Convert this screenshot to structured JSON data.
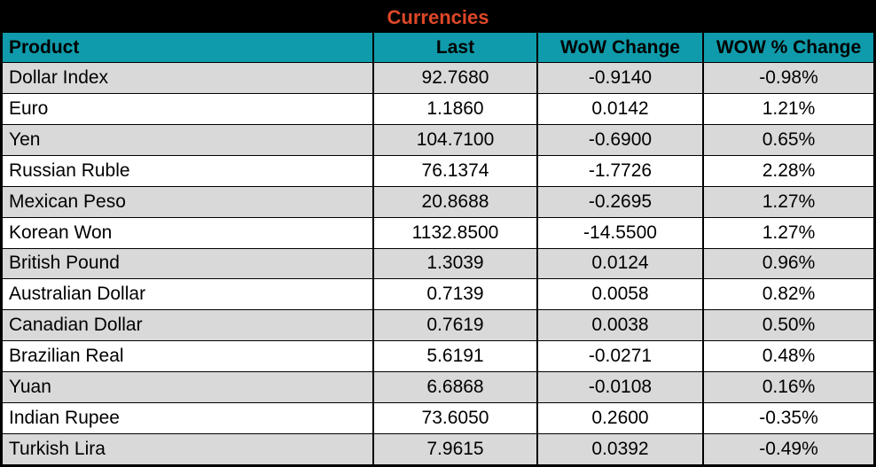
{
  "title": "Currencies",
  "colors": {
    "title_bg": "#000000",
    "title_text": "#DE4727",
    "header_bg": "#0F9BAB",
    "header_text": "#000000",
    "row_alt_bg": "#D9D9D9",
    "row_plain_bg": "#FFFFFF",
    "grid_border": "#000000"
  },
  "table": {
    "columns": [
      "Product",
      "Last",
      "WoW Change",
      "WOW % Change"
    ],
    "rows": [
      {
        "product": "Dollar Index",
        "last": "92.7680",
        "wow_change": "-0.9140",
        "wow_pct_change": "-0.98%"
      },
      {
        "product": "Euro",
        "last": "1.1860",
        "wow_change": "0.0142",
        "wow_pct_change": "1.21%"
      },
      {
        "product": "Yen",
        "last": "104.7100",
        "wow_change": "-0.6900",
        "wow_pct_change": "0.65%"
      },
      {
        "product": "Russian Ruble",
        "last": "76.1374",
        "wow_change": "-1.7726",
        "wow_pct_change": "2.28%"
      },
      {
        "product": "Mexican Peso",
        "last": "20.8688",
        "wow_change": "-0.2695",
        "wow_pct_change": "1.27%"
      },
      {
        "product": "Korean Won",
        "last": "1132.8500",
        "wow_change": "-14.5500",
        "wow_pct_change": "1.27%"
      },
      {
        "product": "British Pound",
        "last": "1.3039",
        "wow_change": "0.0124",
        "wow_pct_change": "0.96%"
      },
      {
        "product": "Australian Dollar",
        "last": "0.7139",
        "wow_change": "0.0058",
        "wow_pct_change": "0.82%"
      },
      {
        "product": "Canadian Dollar",
        "last": "0.7619",
        "wow_change": "0.0038",
        "wow_pct_change": "0.50%"
      },
      {
        "product": "Brazilian Real",
        "last": "5.6191",
        "wow_change": "-0.0271",
        "wow_pct_change": "0.48%"
      },
      {
        "product": "Yuan",
        "last": "6.6868",
        "wow_change": "-0.0108",
        "wow_pct_change": "0.16%"
      },
      {
        "product": "Indian Rupee",
        "last": "73.6050",
        "wow_change": "0.2600",
        "wow_pct_change": "-0.35%"
      },
      {
        "product": "Turkish Lira",
        "last": "7.9615",
        "wow_change": "0.0392",
        "wow_pct_change": "-0.49%"
      }
    ]
  },
  "chart_data": {
    "type": "table",
    "title": "Currencies",
    "columns": [
      "Product",
      "Last",
      "WoW Change",
      "WOW % Change"
    ],
    "rows": [
      [
        "Dollar Index",
        92.768,
        -0.914,
        "-0.98%"
      ],
      [
        "Euro",
        1.186,
        0.0142,
        "1.21%"
      ],
      [
        "Yen",
        104.71,
        -0.69,
        "0.65%"
      ],
      [
        "Russian Ruble",
        76.1374,
        -1.7726,
        "2.28%"
      ],
      [
        "Mexican Peso",
        20.8688,
        -0.2695,
        "1.27%"
      ],
      [
        "Korean Won",
        1132.85,
        -14.55,
        "1.27%"
      ],
      [
        "British Pound",
        1.3039,
        0.0124,
        "0.96%"
      ],
      [
        "Australian Dollar",
        0.7139,
        0.0058,
        "0.82%"
      ],
      [
        "Canadian Dollar",
        0.7619,
        0.0038,
        "0.50%"
      ],
      [
        "Brazilian Real",
        5.6191,
        -0.0271,
        "0.48%"
      ],
      [
        "Yuan",
        6.6868,
        -0.0108,
        "0.16%"
      ],
      [
        "Indian Rupee",
        73.605,
        0.26,
        "-0.35%"
      ],
      [
        "Turkish Lira",
        7.9615,
        0.0392,
        "-0.49%"
      ]
    ]
  }
}
